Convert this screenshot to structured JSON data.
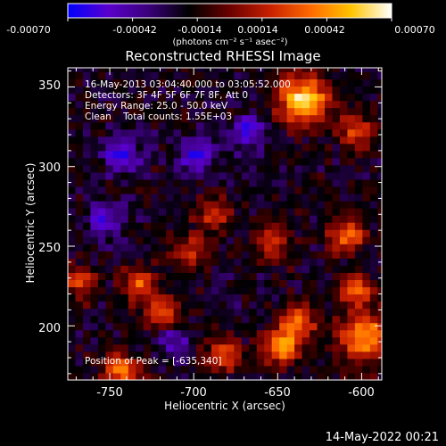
{
  "colors": {
    "background": "#000000",
    "foreground": "#ffffff",
    "colormap": [
      "#0000ff",
      "#5a00cc",
      "#3a007a",
      "#000000",
      "#6a0000",
      "#c82000",
      "#ff6a00",
      "#ffc400",
      "#ffffff"
    ]
  },
  "colorbar": {
    "tick_labels": [
      "-0.00070",
      "-0.00042",
      "-0.00014",
      "0.00014",
      "0.00042",
      "0.00070"
    ],
    "units_label": "(photons cm⁻² s⁻¹ asec⁻²)",
    "range": [
      -0.0007,
      0.0007
    ]
  },
  "chart_data": {
    "type": "heatmap",
    "title": "Reconstructed RHESSI Image",
    "xlabel": "Heliocentric X (arcsec)",
    "ylabel": "Heliocentric Y (arcsec)",
    "xlim": [
      -775,
      -588
    ],
    "ylim": [
      166,
      362
    ],
    "x_tick_labels": [
      "-750",
      "-700",
      "-650",
      "-600"
    ],
    "x_ticks": [
      -750,
      -700,
      -650,
      -600
    ],
    "y_tick_labels": [
      "200",
      "250",
      "300",
      "350"
    ],
    "y_ticks": [
      200,
      250,
      300,
      350
    ],
    "annotations": [
      "16-May-2013 03:04:40.000 to 03:05:52.000",
      "Detectors: 3F 4F 5F 6F 7F 8F, Att 0",
      "Energy Range: 25.0 - 50.0 keV",
      "Clean    Total counts: 1.55E+03"
    ],
    "peak_label": "Position of Peak = [-635,340]",
    "peak": [
      -635,
      340
    ],
    "bright_regions": [
      {
        "x": -637,
        "y": 340,
        "level": 1.0
      },
      {
        "x": -605,
        "y": 320,
        "level": 0.55
      },
      {
        "x": -612,
        "y": 255,
        "level": 0.7
      },
      {
        "x": -605,
        "y": 220,
        "level": 0.6
      },
      {
        "x": -655,
        "y": 250,
        "level": 0.55
      },
      {
        "x": -640,
        "y": 200,
        "level": 0.7
      },
      {
        "x": -650,
        "y": 185,
        "level": 0.75
      },
      {
        "x": -600,
        "y": 190,
        "level": 0.85
      },
      {
        "x": -690,
        "y": 268,
        "level": 0.55
      },
      {
        "x": -705,
        "y": 245,
        "level": 0.5
      },
      {
        "x": -735,
        "y": 225,
        "level": 0.6
      },
      {
        "x": -722,
        "y": 205,
        "level": 0.6
      },
      {
        "x": -745,
        "y": 170,
        "level": 0.7
      },
      {
        "x": -770,
        "y": 225,
        "level": 0.5
      },
      {
        "x": -685,
        "y": 180,
        "level": 0.6
      }
    ],
    "dim_regions": [
      {
        "x": -745,
        "y": 305,
        "level": -0.55
      },
      {
        "x": -755,
        "y": 265,
        "level": -0.5
      },
      {
        "x": -700,
        "y": 305,
        "level": -0.55
      },
      {
        "x": -670,
        "y": 320,
        "level": -0.45
      },
      {
        "x": -715,
        "y": 190,
        "level": -0.4
      }
    ]
  },
  "footer": {
    "date": "14-May-2022 00:21"
  }
}
